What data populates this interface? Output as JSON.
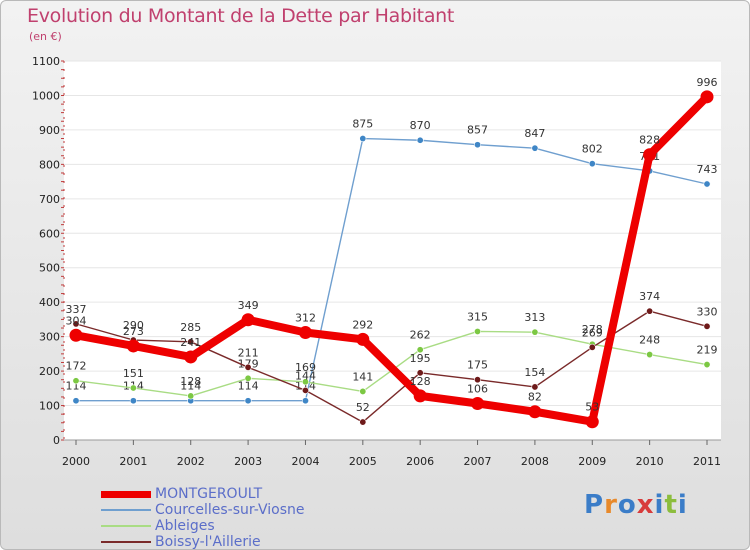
{
  "title": "Evolution du Montant de la Dette par Habitant",
  "subtitle": "(en €)",
  "logo": {
    "text": "Proxiti",
    "letters": [
      {
        "ch": "P",
        "color": "#3b7dc8"
      },
      {
        "ch": "r",
        "color": "#e8892a"
      },
      {
        "ch": "o",
        "color": "#3b7dc8"
      },
      {
        "ch": "x",
        "color": "#d83b3b"
      },
      {
        "ch": "i",
        "color": "#3b7dc8"
      },
      {
        "ch": "t",
        "color": "#8cbd3d"
      },
      {
        "ch": "i",
        "color": "#3b7dc8"
      }
    ]
  },
  "chart_data": {
    "type": "line",
    "title": "Evolution du Montant de la Dette par Habitant",
    "ylabel": "(en €)",
    "xlabel": "",
    "ylim": [
      0,
      1100
    ],
    "yticks": [
      0,
      100,
      200,
      300,
      400,
      500,
      600,
      700,
      800,
      900,
      1000,
      1100
    ],
    "categories": [
      "2000",
      "2001",
      "2002",
      "2003",
      "2004",
      "2005",
      "2006",
      "2007",
      "2008",
      "2009",
      "2010",
      "2011"
    ],
    "legend_position": "bottom-left",
    "series": [
      {
        "name": "Courcelles-sur-Viosne",
        "color": "#6f9fcf",
        "marker": "#3f86c6",
        "values": [
          114,
          114,
          114,
          114,
          114,
          875,
          870,
          857,
          847,
          802,
          781,
          743
        ]
      },
      {
        "name": "Ableiges",
        "color": "#a9dc84",
        "marker": "#7cc843",
        "values": [
          172,
          151,
          128,
          179,
          169,
          141,
          262,
          315,
          313,
          278,
          248,
          219
        ]
      },
      {
        "name": "Boissy-l'Aillerie",
        "color": "#7a2a2a",
        "marker": "#6e1a1a",
        "values": [
          337,
          290,
          285,
          211,
          144,
          52,
          195,
          175,
          154,
          269,
          374,
          330
        ]
      },
      {
        "name": "MONTGEROULT",
        "color": "#ee0000",
        "marker": "#ee0000",
        "values": [
          304,
          273,
          241,
          349,
          312,
          292,
          128,
          106,
          82,
          53,
          828,
          996
        ]
      }
    ],
    "legend_order": [
      "MONTGEROULT",
      "Courcelles-sur-Viosne",
      "Ableiges",
      "Boissy-l'Aillerie"
    ]
  }
}
